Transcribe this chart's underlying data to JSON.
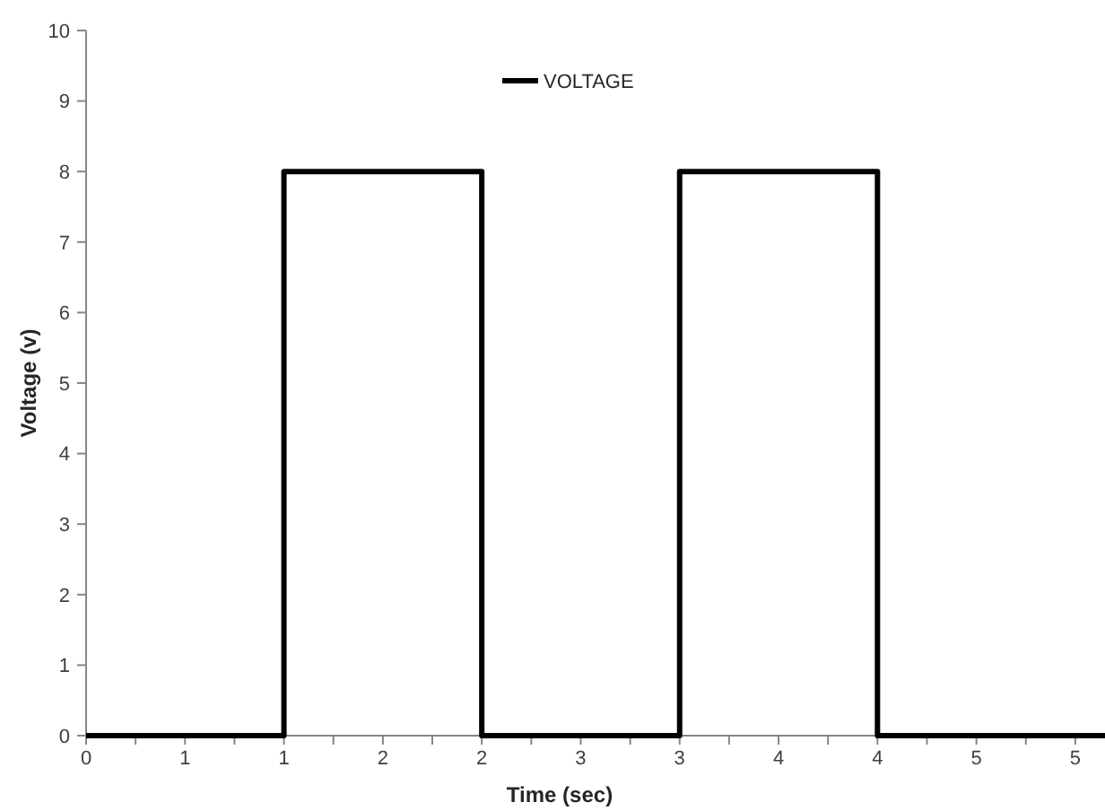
{
  "chart_data": {
    "type": "line",
    "xlabel": "Time (sec)",
    "ylabel": "Voltage (v)",
    "x": [
      0,
      1,
      1,
      2,
      2,
      3,
      3,
      4,
      4,
      5.15
    ],
    "series": [
      {
        "name": "VOLTAGE",
        "color": "#000000",
        "values": [
          0,
          0,
          8,
          8,
          0,
          0,
          8,
          8,
          0,
          0
        ]
      }
    ],
    "xlim": [
      0,
      5.15
    ],
    "xticks": [
      0,
      {
        "value": 0.25,
        "label": null
      },
      {
        "value": 0.5,
        "label": "1"
      },
      {
        "value": 0.75,
        "label": null
      },
      1,
      {
        "value": 1.25,
        "label": null
      },
      {
        "value": 1.5,
        "label": "2"
      },
      {
        "value": 1.75,
        "label": null
      },
      2,
      {
        "value": 2.25,
        "label": null
      },
      {
        "value": 2.5,
        "label": "3"
      },
      {
        "value": 2.75,
        "label": null
      },
      3,
      {
        "value": 3.25,
        "label": null
      },
      {
        "value": 3.5,
        "label": "4"
      },
      {
        "value": 3.75,
        "label": null
      },
      4,
      {
        "value": 4.25,
        "label": null
      },
      {
        "value": 4.5,
        "label": "5"
      },
      {
        "value": 4.75,
        "label": null
      },
      5
    ],
    "ylim": [
      0,
      10
    ],
    "yticks": [
      0,
      1,
      2,
      3,
      4,
      5,
      6,
      7,
      8,
      9,
      10
    ],
    "grid": false,
    "legend": "top",
    "marker": "none",
    "line_style": "solid"
  }
}
